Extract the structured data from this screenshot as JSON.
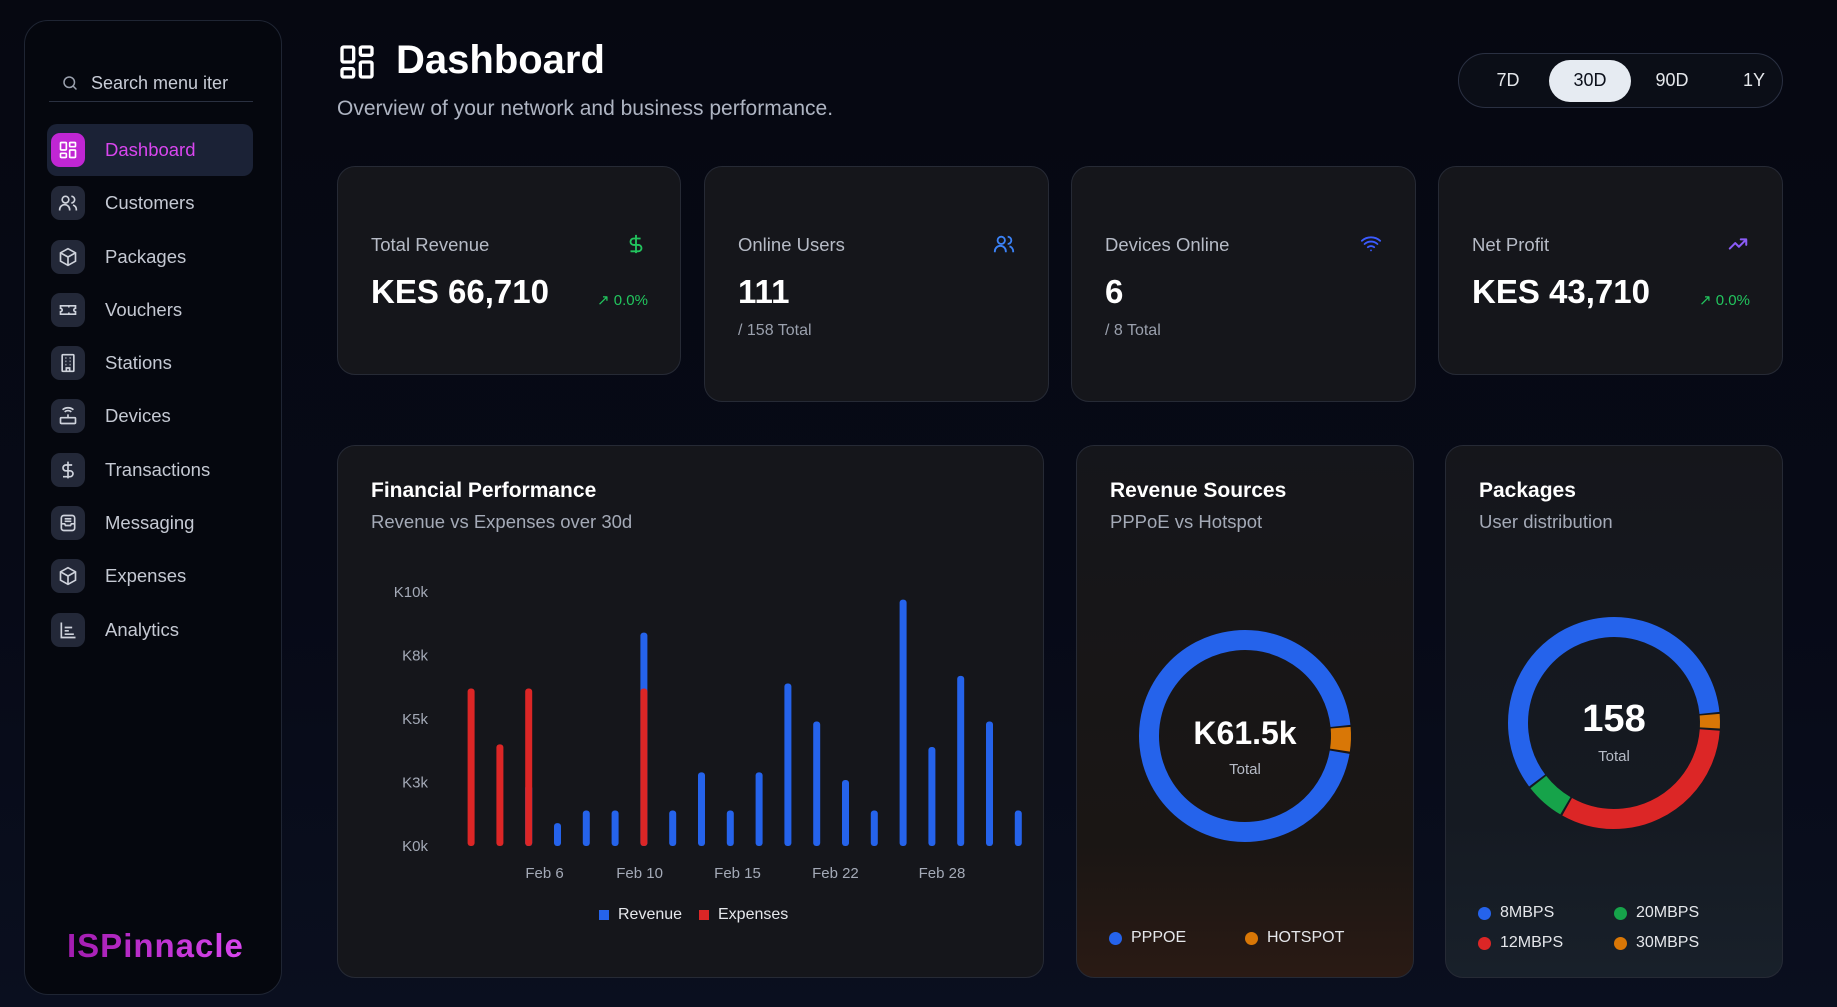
{
  "sidebar": {
    "search_placeholder": "Search menu iter",
    "items": [
      {
        "label": "Dashboard",
        "icon": "dashboard-icon"
      },
      {
        "label": "Customers",
        "icon": "users-icon"
      },
      {
        "label": "Packages",
        "icon": "package-icon"
      },
      {
        "label": "Vouchers",
        "icon": "ticket-icon"
      },
      {
        "label": "Stations",
        "icon": "building-icon"
      },
      {
        "label": "Devices",
        "icon": "router-icon"
      },
      {
        "label": "Transactions",
        "icon": "dollar-icon"
      },
      {
        "label": "Messaging",
        "icon": "inbox-icon"
      },
      {
        "label": "Expenses",
        "icon": "package-icon"
      },
      {
        "label": "Analytics",
        "icon": "chart-icon"
      }
    ],
    "brand": "ISPinnacle"
  },
  "header": {
    "title": "Dashboard",
    "subtitle": "Overview of your network and business performance.",
    "ranges": [
      "7D",
      "30D",
      "90D",
      "1Y"
    ],
    "active_range": "30D"
  },
  "stats": {
    "revenue": {
      "label": "Total Revenue",
      "value": "KES 66,710",
      "trend": "0.0%",
      "icon": "dollar-icon",
      "color": "#22c55e"
    },
    "users": {
      "label": "Online Users",
      "value": "111",
      "sub": "/ 158 Total",
      "icon": "users-icon",
      "color": "#3b82f6"
    },
    "devices": {
      "label": "Devices Online",
      "value": "6",
      "sub": "/ 8 Total",
      "icon": "wifi-icon",
      "color": "#3b5bff"
    },
    "profit": {
      "label": "Net Profit",
      "value": "KES 43,710",
      "trend": "0.0%",
      "icon": "trending-up-icon",
      "color": "#8b5cf6"
    }
  },
  "financial": {
    "title": "Financial Performance",
    "subtitle": "Revenue vs Expenses over 30d",
    "legend_revenue": "Revenue",
    "legend_expenses": "Expenses"
  },
  "sources": {
    "title": "Revenue Sources",
    "subtitle": "PPPoE vs Hotspot",
    "center_value": "K61.5k",
    "center_label": "Total",
    "legend": [
      "PPPOE",
      "HOTSPOT"
    ]
  },
  "packages": {
    "title": "Packages",
    "subtitle": "User distribution",
    "center_value": "158",
    "center_label": "Total",
    "legend": [
      "8MBPS",
      "20MBPS",
      "12MBPS",
      "30MBPS"
    ]
  },
  "chart_data": [
    {
      "type": "bar",
      "title": "Financial Performance",
      "y_ticks": [
        "K0k",
        "K3k",
        "K5k",
        "K8k",
        "K10k"
      ],
      "ylim": [
        0,
        10000
      ],
      "x_ticks": [
        "Feb 6",
        "Feb 10",
        "Feb 15",
        "Feb 22",
        "Feb 28"
      ],
      "series": [
        {
          "name": "Revenue",
          "color": "#2563eb",
          "points": [
            {
              "day": 4,
              "value": 2400
            },
            {
              "day": 5,
              "value": 900
            },
            {
              "day": 6,
              "value": 1400
            },
            {
              "day": 7,
              "value": 1400
            },
            {
              "day": 8,
              "value": 8400
            },
            {
              "day": 9,
              "value": 1400
            },
            {
              "day": 10,
              "value": 2900
            },
            {
              "day": 11,
              "value": 1400
            },
            {
              "day": 12,
              "value": 2900
            },
            {
              "day": 13,
              "value": 6400
            },
            {
              "day": 14,
              "value": 4900
            },
            {
              "day": 15,
              "value": 2600
            },
            {
              "day": 16,
              "value": 1400
            },
            {
              "day": 17,
              "value": 9700
            },
            {
              "day": 18,
              "value": 3900
            },
            {
              "day": 19,
              "value": 6700
            },
            {
              "day": 20,
              "value": 4900
            },
            {
              "day": 21,
              "value": 1400
            }
          ]
        },
        {
          "name": "Expenses",
          "color": "#dc2626",
          "points": [
            {
              "day": 2,
              "value": 6200
            },
            {
              "day": 3,
              "value": 4000
            },
            {
              "day": 4,
              "value": 6200
            },
            {
              "day": 8,
              "value": 6200
            }
          ]
        }
      ]
    },
    {
      "type": "pie",
      "title": "Revenue Sources",
      "labels": [
        "PPPOE",
        "HOTSPOT"
      ],
      "values": [
        59000,
        2500
      ],
      "colors": [
        "#2563eb",
        "#d97706"
      ]
    },
    {
      "type": "pie",
      "title": "Packages",
      "labels": [
        "8MBPS",
        "20MBPS",
        "12MBPS",
        "30MBPS"
      ],
      "values": [
        93,
        10,
        51,
        4
      ],
      "colors": [
        "#2563eb",
        "#16a34a",
        "#dc2626",
        "#d97706"
      ]
    }
  ]
}
